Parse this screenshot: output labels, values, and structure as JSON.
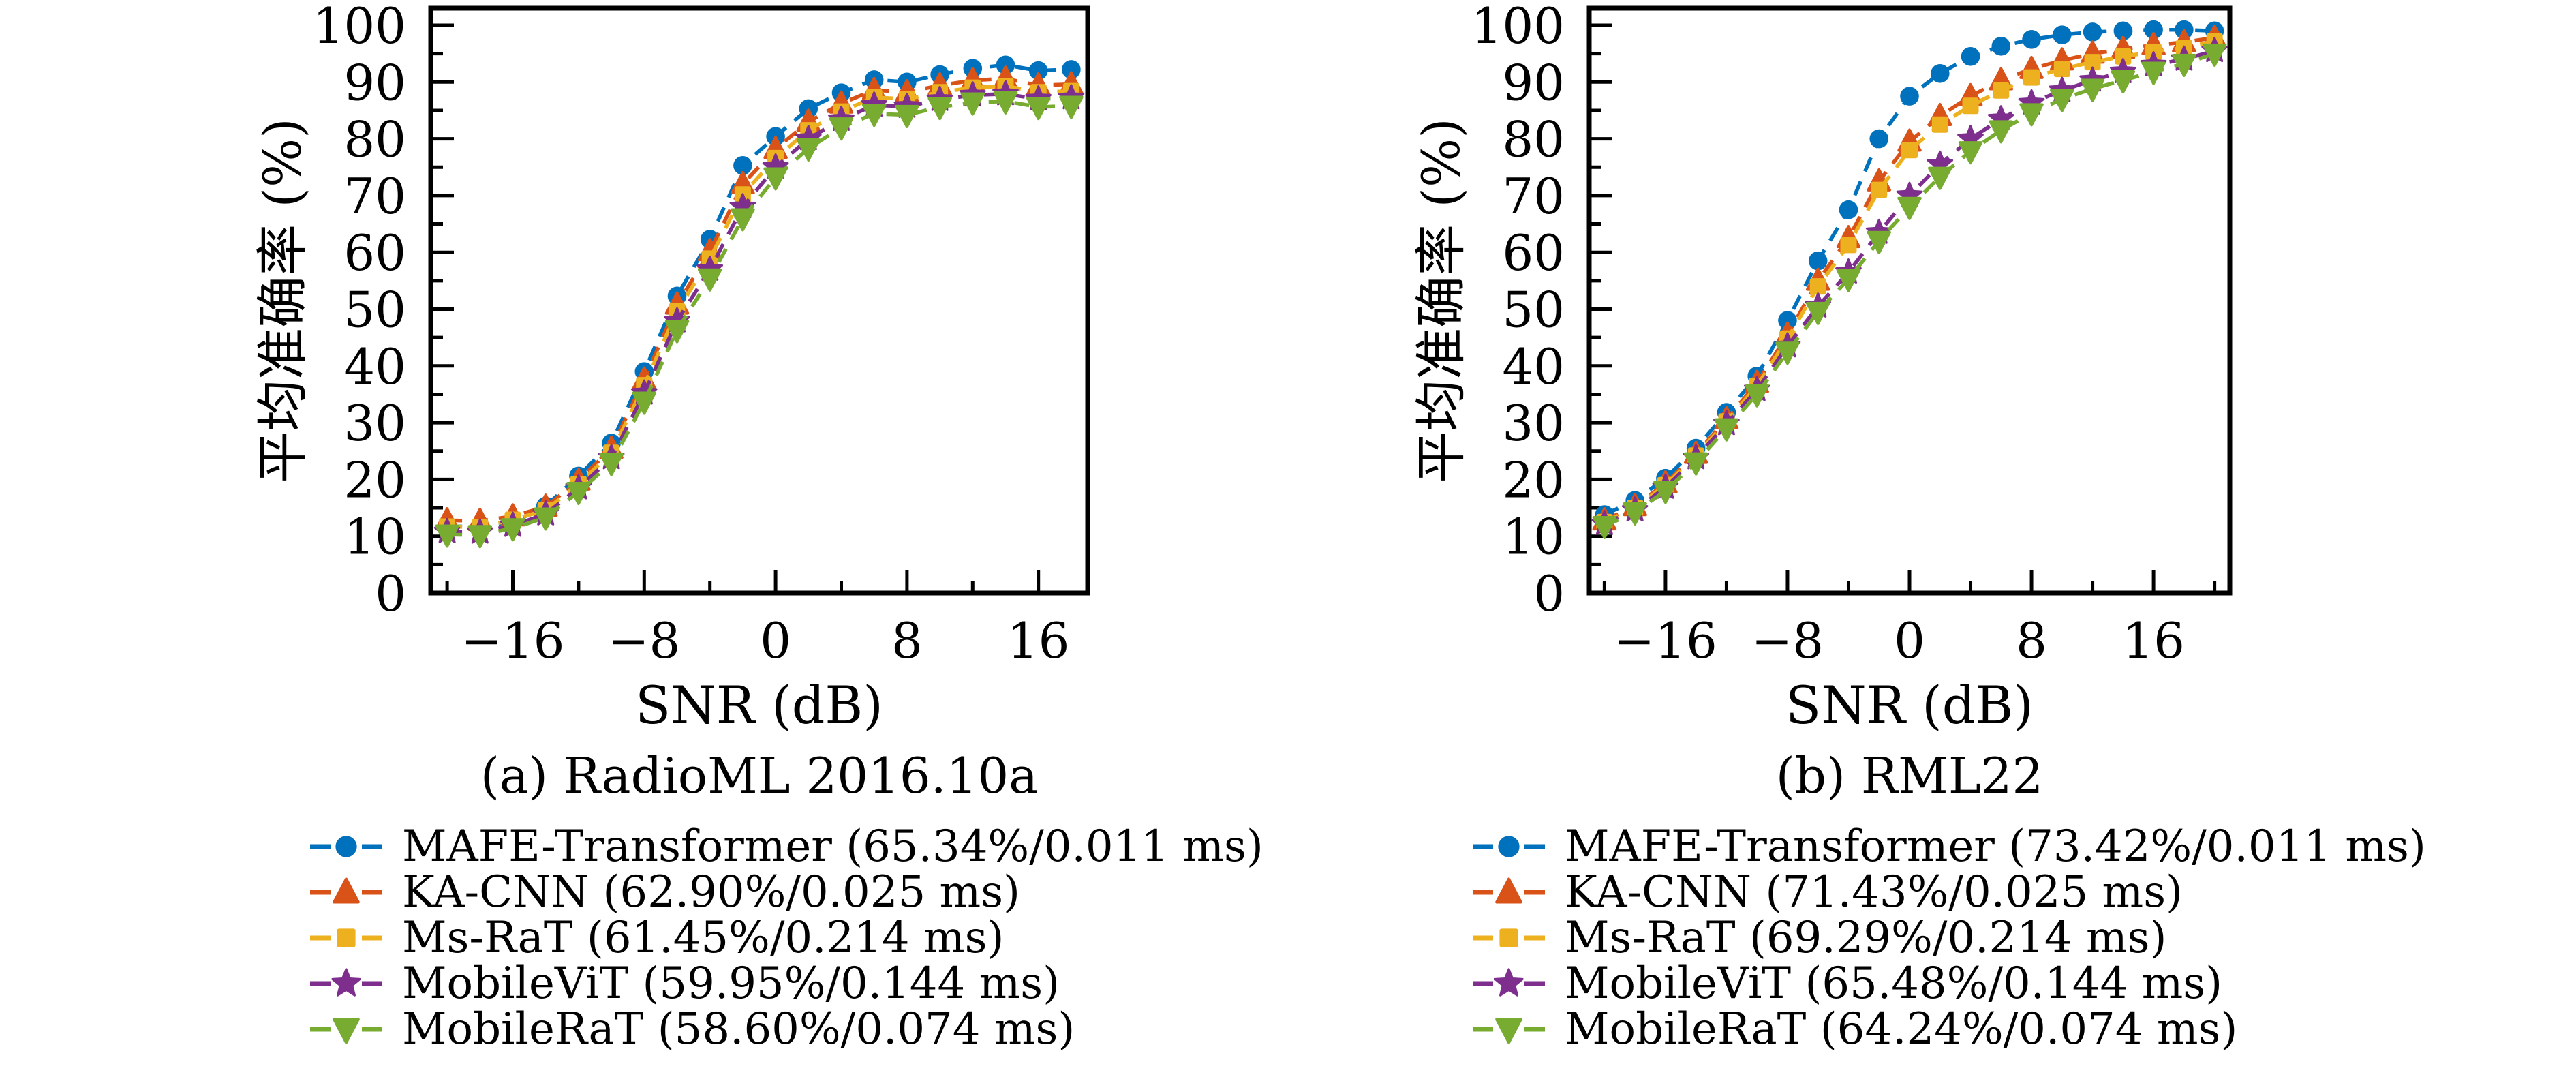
{
  "figure": {
    "background": "#ffffff",
    "axis_color": "#000000",
    "palette": {
      "blue": "#0072BD",
      "orange": "#D95319",
      "yellow": "#EDB120",
      "purple": "#7E2F8E",
      "green": "#77AC30"
    }
  },
  "chart_data": [
    {
      "id": "a",
      "type": "line",
      "caption": "(a) RadioML 2016.10a",
      "xlabel": "SNR (dB)",
      "ylabel": "平均准确率 (%)",
      "xlim": [
        -21,
        19
      ],
      "ylim": [
        0,
        103
      ],
      "xticks": [
        -16,
        -8,
        0,
        8,
        16
      ],
      "yticks": [
        0,
        10,
        20,
        30,
        40,
        50,
        60,
        70,
        80,
        90,
        100
      ],
      "grid": false,
      "legend_position": "below",
      "x": [
        -20,
        -18,
        -16,
        -14,
        -12,
        -10,
        -8,
        -6,
        -4,
        -2,
        0,
        2,
        4,
        6,
        8,
        10,
        12,
        14,
        16,
        18
      ],
      "series": [
        {
          "name": "MAFE-Transformer",
          "legend_label": "MAFE-Transformer (65.34%/0.011 ms)",
          "color": "#0072BD",
          "marker": "circle",
          "linestyle": "dashed",
          "values": [
            11.8,
            11.6,
            12.4,
            15.3,
            20.6,
            26.4,
            39.0,
            52.3,
            62.3,
            75.3,
            80.4,
            85.3,
            88.1,
            90.4,
            90.0,
            91.3,
            92.4,
            93.0,
            92.0,
            92.2
          ]
        },
        {
          "name": "KA-CNN",
          "legend_label": "KA-CNN (62.90%/0.025 ms)",
          "color": "#D95319",
          "marker": "triangle-up",
          "linestyle": "dashed",
          "values": [
            12.8,
            12.7,
            13.5,
            15.2,
            19.8,
            25.4,
            37.6,
            50.8,
            60.2,
            72.0,
            78.2,
            83.0,
            86.2,
            88.6,
            88.2,
            89.4,
            90.3,
            90.6,
            89.4,
            89.6
          ]
        },
        {
          "name": "Ms-RaT",
          "legend_label": "Ms-RaT (61.45%/0.214 ms)",
          "color": "#EDB120",
          "marker": "square",
          "linestyle": "dashed",
          "values": [
            11.7,
            11.6,
            12.9,
            14.6,
            19.2,
            24.7,
            36.6,
            49.6,
            58.9,
            70.2,
            76.6,
            81.5,
            84.8,
            87.3,
            87.0,
            88.2,
            89.0,
            89.3,
            88.2,
            88.4
          ]
        },
        {
          "name": "MobileViT",
          "legend_label": "MobileViT (59.95%/0.144 ms)",
          "color": "#7E2F8E",
          "marker": "star",
          "linestyle": "dashed",
          "values": [
            10.8,
            10.7,
            11.9,
            13.9,
            18.5,
            23.8,
            35.2,
            47.9,
            57.0,
            68.0,
            75.0,
            80.0,
            83.4,
            85.9,
            85.7,
            86.9,
            87.7,
            87.9,
            87.0,
            87.2
          ]
        },
        {
          "name": "MobileRaT",
          "legend_label": "MobileRaT (58.60%/0.074 ms)",
          "color": "#77AC30",
          "marker": "triangle-down",
          "linestyle": "dashed",
          "values": [
            10.3,
            10.2,
            11.4,
            13.3,
            17.8,
            22.9,
            33.7,
            46.3,
            55.4,
            66.0,
            73.2,
            78.3,
            82.0,
            84.4,
            84.2,
            85.6,
            86.4,
            86.6,
            85.6,
            85.8
          ]
        }
      ]
    },
    {
      "id": "b",
      "type": "line",
      "caption": "(b) RML22",
      "xlabel": "SNR (dB)",
      "ylabel": "平均准确率 (%)",
      "xlim": [
        -21,
        21
      ],
      "ylim": [
        0,
        103
      ],
      "xticks": [
        -16,
        -8,
        0,
        8,
        16
      ],
      "yticks": [
        0,
        10,
        20,
        30,
        40,
        50,
        60,
        70,
        80,
        90,
        100
      ],
      "grid": false,
      "legend_position": "below",
      "x": [
        -20,
        -18,
        -16,
        -14,
        -12,
        -10,
        -8,
        -6,
        -4,
        -2,
        0,
        2,
        4,
        6,
        8,
        10,
        12,
        14,
        16,
        18,
        20
      ],
      "series": [
        {
          "name": "MAFE-Transformer",
          "legend_label": "MAFE-Transformer (73.42%/0.011 ms)",
          "color": "#0072BD",
          "marker": "circle",
          "linestyle": "dashed",
          "values": [
            13.8,
            16.3,
            20.2,
            25.5,
            31.8,
            38.2,
            48.0,
            58.5,
            67.5,
            80.0,
            87.5,
            91.5,
            94.5,
            96.3,
            97.5,
            98.3,
            98.8,
            99.0,
            99.2,
            99.2,
            99.0
          ]
        },
        {
          "name": "KA-CNN",
          "legend_label": "KA-CNN (71.43%/0.025 ms)",
          "color": "#D95319",
          "marker": "triangle-up",
          "linestyle": "dashed",
          "values": [
            12.8,
            15.3,
            19.3,
            24.5,
            30.6,
            37.0,
            45.5,
            55.0,
            62.5,
            72.5,
            79.5,
            84.0,
            87.5,
            90.3,
            92.3,
            93.8,
            95.0,
            95.8,
            96.5,
            97.0,
            97.8
          ]
        },
        {
          "name": "Ms-RaT",
          "legend_label": "Ms-RaT (69.29%/0.214 ms)",
          "color": "#EDB120",
          "marker": "square",
          "linestyle": "dashed",
          "values": [
            12.5,
            15.0,
            19.0,
            24.2,
            30.2,
            36.5,
            44.8,
            54.0,
            61.3,
            71.0,
            78.0,
            82.5,
            85.8,
            88.5,
            90.8,
            92.3,
            93.5,
            94.5,
            95.3,
            96.0,
            97.2
          ]
        },
        {
          "name": "MobileViT",
          "legend_label": "MobileViT (65.48%/0.144 ms)",
          "color": "#7E2F8E",
          "marker": "star",
          "linestyle": "dashed",
          "values": [
            12.2,
            14.6,
            18.6,
            23.8,
            29.8,
            35.8,
            43.5,
            50.5,
            56.5,
            63.5,
            70.0,
            75.5,
            80.0,
            83.5,
            86.3,
            88.5,
            90.3,
            91.8,
            93.0,
            94.0,
            95.5
          ]
        },
        {
          "name": "MobileRaT",
          "legend_label": "MobileRaT (64.24%/0.074 ms)",
          "color": "#77AC30",
          "marker": "triangle-down",
          "linestyle": "dashed",
          "values": [
            11.8,
            14.2,
            18.0,
            23.0,
            29.0,
            35.0,
            42.5,
            49.5,
            55.3,
            62.0,
            68.0,
            73.3,
            77.8,
            81.5,
            84.5,
            87.0,
            88.8,
            90.3,
            91.8,
            93.2,
            95.0
          ]
        }
      ]
    }
  ]
}
